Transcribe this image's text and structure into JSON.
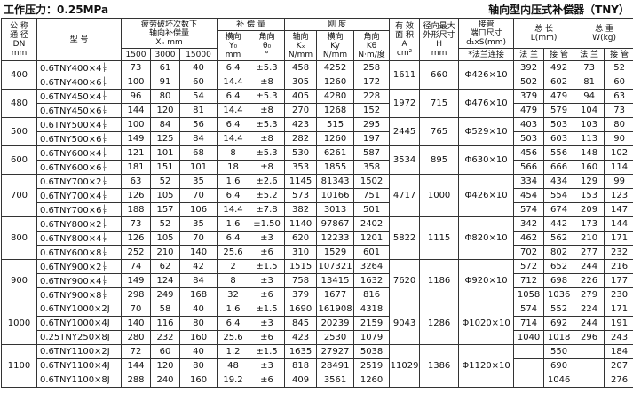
{
  "header": {
    "left": "工作压力：0.25MPa",
    "right": "轴向型内压式补偿器（TNY）"
  },
  "table": {
    "head": {
      "dn": [
        "公 称",
        "通 径",
        "DN",
        "mm"
      ],
      "model": "型 号",
      "fatigue": [
        "疲劳破坏次数下",
        "轴向补偿量",
        "Xₓ   mm"
      ],
      "cycles": [
        "1500",
        "3000",
        "15000"
      ],
      "comp": "补 偿 量",
      "y0": [
        "横向",
        "Y₀",
        "mm"
      ],
      "theta": [
        "角向",
        "θ₀",
        "°"
      ],
      "stiff": "刚 度",
      "kx": [
        "轴向",
        "Kₓ",
        "N/mm"
      ],
      "ky": [
        "横向",
        "Ky",
        "N/mm"
      ],
      "kth": [
        "角向",
        "Kθ",
        "N·m/度"
      ],
      "area": [
        "有 效",
        "面 积",
        "A",
        "cm²"
      ],
      "h": [
        "径向最大",
        "外形尺寸",
        "H",
        "mm"
      ],
      "port": [
        "接管",
        "端口尺寸",
        "d₁xS(mm)"
      ],
      "portsub": "*法兰连接",
      "len": [
        "总 长",
        "L(mm)"
      ],
      "wt": [
        "总 重",
        "W(kg)"
      ],
      "sub": [
        "法 兰",
        "接 管"
      ]
    },
    "groups": [
      {
        "dn": 400,
        "area": 1611,
        "h": 660,
        "port": "Φ426×10",
        "rows": [
          {
            "model": "0.6TNY400×4",
            "suffix": [
              "J",
              "F"
            ],
            "x": [
              73,
              61,
              40
            ],
            "y0": 6.4,
            "theta": "±5.3",
            "k": [
              458,
              4252,
              258
            ],
            "L": [
              392,
              492
            ],
            "W": [
              73,
              52
            ]
          },
          {
            "model": "0.6TNY400×6",
            "suffix": [
              "J",
              "F"
            ],
            "x": [
              100,
              91,
              60
            ],
            "y0": 14.4,
            "theta": "±8",
            "k": [
              305,
              1260,
              172
            ],
            "L": [
              502,
              602
            ],
            "W": [
              81,
              60
            ]
          }
        ]
      },
      {
        "dn": 480,
        "area": 1972,
        "h": 715,
        "port": "Φ476×10",
        "rows": [
          {
            "model": "0.6TNY450×4",
            "suffix": [
              "J",
              "F"
            ],
            "x": [
              96,
              80,
              54
            ],
            "y0": 6.4,
            "theta": "±5.3",
            "k": [
              405,
              4280,
              228
            ],
            "L": [
              379,
              479
            ],
            "W": [
              94,
              63
            ]
          },
          {
            "model": "0.6TNY450×6",
            "suffix": [
              "J",
              "F"
            ],
            "x": [
              144,
              120,
              81
            ],
            "y0": 14.4,
            "theta": "±8",
            "k": [
              270,
              1268,
              152
            ],
            "L": [
              479,
              579
            ],
            "W": [
              104,
              73
            ]
          }
        ]
      },
      {
        "dn": 500,
        "area": 2445,
        "h": 765,
        "port": "Φ529×10",
        "rows": [
          {
            "model": "0.6TNY500×4",
            "suffix": [
              "J",
              "F"
            ],
            "x": [
              100,
              84,
              56
            ],
            "y0": 6.4,
            "theta": "±5.3",
            "k": [
              423,
              515,
              295
            ],
            "L": [
              403,
              503
            ],
            "W": [
              103,
              80
            ]
          },
          {
            "model": "0.6TNY500×6",
            "suffix": [
              "J",
              "F"
            ],
            "x": [
              149,
              125,
              84
            ],
            "y0": 14.4,
            "theta": "±8",
            "k": [
              282,
              1260,
              197
            ],
            "L": [
              503,
              603
            ],
            "W": [
              113,
              90
            ]
          }
        ]
      },
      {
        "dn": 600,
        "area": 3534,
        "h": 895,
        "port": "Φ630×10",
        "rows": [
          {
            "model": "0.6TNY600×4",
            "suffix": [
              "J",
              "F"
            ],
            "x": [
              121,
              101,
              68
            ],
            "y0": 8,
            "theta": "±5.3",
            "k": [
              530,
              6261,
              587
            ],
            "L": [
              456,
              556
            ],
            "W": [
              148,
              102
            ]
          },
          {
            "model": "0.6TNY600×6",
            "suffix": [
              "J",
              "F"
            ],
            "x": [
              181,
              151,
              101
            ],
            "y0": 18,
            "theta": "±8",
            "k": [
              353,
              1855,
              358
            ],
            "L": [
              566,
              666
            ],
            "W": [
              160,
              114
            ]
          }
        ]
      },
      {
        "dn": 700,
        "area": 4717,
        "h": 1000,
        "port": "Φ426×10",
        "rows": [
          {
            "model": "0.6TNY700×2",
            "suffix": [
              "J",
              "F"
            ],
            "x": [
              63,
              52,
              35
            ],
            "y0": 1.6,
            "theta": "±2.6",
            "k": [
              1145,
              81343,
              1502
            ],
            "L": [
              334,
              434
            ],
            "W": [
              129,
              99
            ]
          },
          {
            "model": "0.6TNY700×4",
            "suffix": [
              "J",
              "F"
            ],
            "x": [
              126,
              105,
              70
            ],
            "y0": 6.4,
            "theta": "±5.2",
            "k": [
              573,
              10166,
              751
            ],
            "L": [
              454,
              554
            ],
            "W": [
              153,
              123
            ]
          },
          {
            "model": "0.6TNY700×6",
            "suffix": [
              "J",
              "F"
            ],
            "x": [
              188,
              157,
              106
            ],
            "y0": 14.4,
            "theta": "±7.8",
            "k": [
              382,
              3013,
              501
            ],
            "L": [
              574,
              674
            ],
            "W": [
              209,
              147
            ]
          }
        ]
      },
      {
        "dn": 800,
        "area": 5822,
        "h": 1115,
        "port": "Φ820×10",
        "rows": [
          {
            "model": "0.6TNY800×2",
            "suffix": [
              "J",
              "F"
            ],
            "x": [
              73,
              52,
              35
            ],
            "y0": 1.6,
            "theta": "±1.50",
            "k": [
              1140,
              97867,
              2402
            ],
            "L": [
              342,
              442
            ],
            "W": [
              173,
              144
            ]
          },
          {
            "model": "0.6TNY800×4",
            "suffix": [
              "J",
              "F"
            ],
            "x": [
              126,
              105,
              70
            ],
            "y0": 6.4,
            "theta": "±3",
            "k": [
              620,
              12233,
              1201
            ],
            "L": [
              462,
              562
            ],
            "W": [
              210,
              171
            ]
          },
          {
            "model": "0.6TNY600×8",
            "suffix": [
              "J",
              "F"
            ],
            "x": [
              252,
              210,
              140
            ],
            "y0": 25.6,
            "theta": "±6",
            "k": [
              310,
              1529,
              601
            ],
            "L": [
              702,
              802
            ],
            "W": [
              277,
              232
            ]
          }
        ]
      },
      {
        "dn": 900,
        "area": 7620,
        "h": 1186,
        "port": "Φ920×10",
        "rows": [
          {
            "model": "0.6TNY900×2",
            "suffix": [
              "J",
              "F"
            ],
            "x": [
              74,
              62,
              42
            ],
            "y0": 2,
            "theta": "±1.5",
            "k": [
              1515,
              107321,
              3264
            ],
            "L": [
              572,
              652
            ],
            "W": [
              244,
              216
            ]
          },
          {
            "model": "0.6TNY900×4",
            "suffix": [
              "J",
              "F"
            ],
            "x": [
              149,
              124,
              84
            ],
            "y0": 8,
            "theta": "±3",
            "k": [
              758,
              13415,
              1632
            ],
            "L": [
              712,
              698
            ],
            "W": [
              226,
              177
            ]
          },
          {
            "model": "0.6TNY900×8",
            "suffix": [
              "J",
              "F"
            ],
            "x": [
              298,
              249,
              168
            ],
            "y0": 32,
            "theta": "±6",
            "k": [
              379,
              1677,
              816
            ],
            "L": [
              1058,
              1036
            ],
            "W": [
              279,
              230
            ]
          }
        ]
      },
      {
        "dn": 1000,
        "area": 9043,
        "h": 1286,
        "port": "Φ1020×10",
        "rows": [
          {
            "model": "0.6TNY1000×2J",
            "x": [
              70,
              58,
              40
            ],
            "y0": 1.6,
            "theta": "±1.5",
            "k": [
              1690,
              161908,
              4318
            ],
            "L": [
              574,
              552
            ],
            "W": [
              224,
              171
            ]
          },
          {
            "model": "0.6TNY1000×4J",
            "x": [
              140,
              116,
              80
            ],
            "y0": 6.4,
            "theta": "±3",
            "k": [
              845,
              20239,
              2159
            ],
            "L": [
              714,
              692
            ],
            "W": [
              244,
              191
            ]
          },
          {
            "model": "0.25TNY250×8J",
            "x": [
              280,
              232,
              160
            ],
            "y0": 25.6,
            "theta": "±6",
            "k": [
              423,
              2530,
              1079
            ],
            "L": [
              1040,
              1018
            ],
            "W": [
              296,
              243
            ]
          }
        ]
      },
      {
        "dn": 1100,
        "area": 11029,
        "h": 1386,
        "port": "Φ1120×10",
        "rows": [
          {
            "model": "0.6TNY1100×2J",
            "x": [
              72,
              60,
              40
            ],
            "y0": 1.2,
            "theta": "±1.5",
            "k": [
              1635,
              27927,
              5038
            ],
            "L": [
              null,
              550
            ],
            "W": [
              null,
              184
            ]
          },
          {
            "model": "0.6TNY1100×4J",
            "x": [
              144,
              120,
              80
            ],
            "y0": 48,
            "theta": "±3",
            "k": [
              818,
              28491,
              2519
            ],
            "L": [
              null,
              690
            ],
            "W": [
              null,
              207
            ]
          },
          {
            "model": "0.6TNY1100×8J",
            "x": [
              288,
              240,
              160
            ],
            "y0": 19.2,
            "theta": "±6",
            "k": [
              409,
              3561,
              1260
            ],
            "L": [
              null,
              1046
            ],
            "W": [
              null,
              276
            ]
          }
        ]
      }
    ]
  }
}
